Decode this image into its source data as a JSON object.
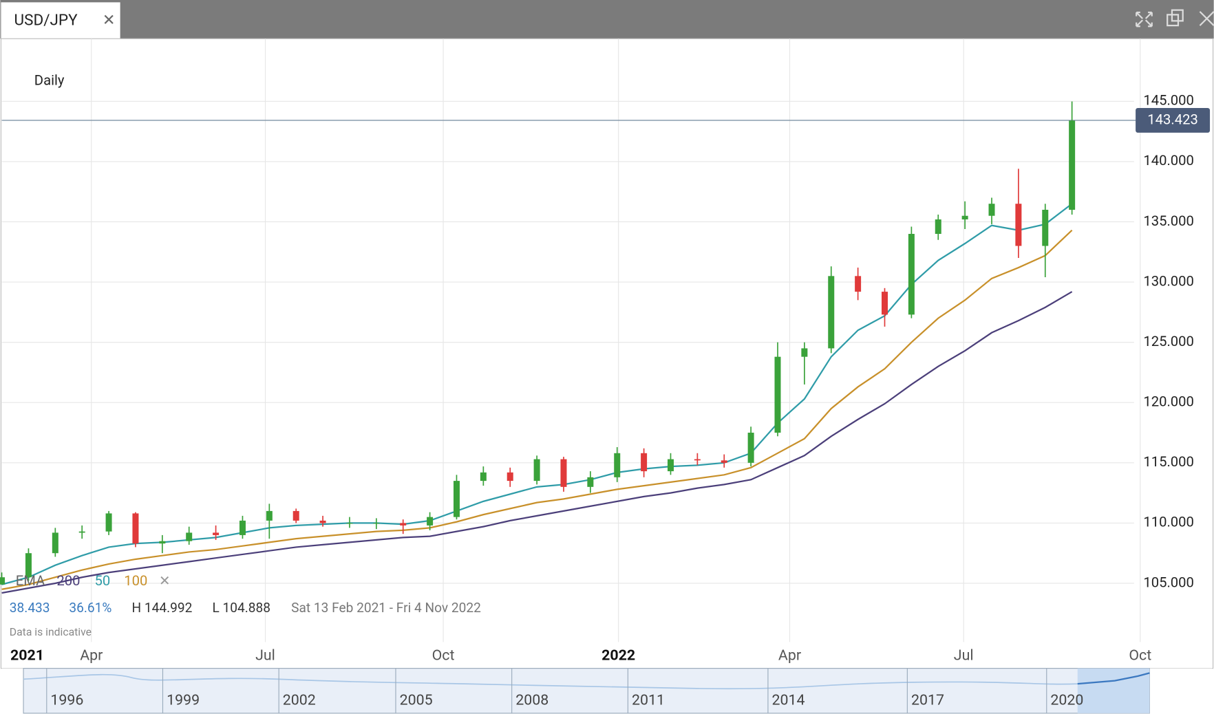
{
  "tab": {
    "title": "USD/JPY"
  },
  "chart_data": {
    "type": "candlestick",
    "title": "Daily",
    "open": [
      104.9,
      105.5,
      107.5,
      109.2,
      109.3,
      110.8,
      108.3,
      108.5,
      109.2,
      109.0,
      110.2,
      111.0,
      110.2,
      110.0,
      110.0,
      110.0,
      109.8,
      110.5,
      113.5,
      114.2,
      113.5,
      115.3,
      113.0,
      113.8,
      115.8,
      114.3,
      115.3,
      115.2,
      115.0,
      117.5,
      123.8,
      124.5,
      130.5,
      129.2,
      127.3,
      134.0,
      135.2,
      135.5,
      136.5,
      133.0,
      136.0
    ],
    "high": [
      105.9,
      107.9,
      109.6,
      109.8,
      111.0,
      110.9,
      109.0,
      109.7,
      109.8,
      110.6,
      111.6,
      111.2,
      110.6,
      110.5,
      110.4,
      110.3,
      110.9,
      114.0,
      114.7,
      114.6,
      115.6,
      115.5,
      114.3,
      116.3,
      116.2,
      115.8,
      115.8,
      115.7,
      118.0,
      125.0,
      125.0,
      131.3,
      131.2,
      129.5,
      134.6,
      135.6,
      136.7,
      137.0,
      139.4,
      136.5,
      144.99
    ],
    "low": [
      104.89,
      105.2,
      107.2,
      108.7,
      109.0,
      108.0,
      107.5,
      108.2,
      108.6,
      108.7,
      108.7,
      110.0,
      109.7,
      109.6,
      109.5,
      109.1,
      109.4,
      110.3,
      113.1,
      113.0,
      113.2,
      112.6,
      112.5,
      113.4,
      113.8,
      114.0,
      114.8,
      114.6,
      114.7,
      117.2,
      121.5,
      124.1,
      128.5,
      126.3,
      127.0,
      133.5,
      134.4,
      134.8,
      132.0,
      130.4,
      135.6
    ],
    "close": [
      105.5,
      107.5,
      109.2,
      109.3,
      110.8,
      108.3,
      108.5,
      109.2,
      109.0,
      110.2,
      111.0,
      110.2,
      110.0,
      110.0,
      110.0,
      109.8,
      110.5,
      113.5,
      114.2,
      113.5,
      115.3,
      113.0,
      113.8,
      115.8,
      114.3,
      115.3,
      115.2,
      115.0,
      117.5,
      123.8,
      124.5,
      130.5,
      129.2,
      127.3,
      134.0,
      135.2,
      135.5,
      136.5,
      133.0,
      136.0,
      143.4
    ],
    "up_color": "#3aa23a",
    "down_color": "#e03a3a",
    "legend_title": "EMA",
    "series": [
      {
        "name": "200",
        "color": "#4b3f7a",
        "values": [
          104.2,
          104.6,
          105.0,
          105.5,
          105.9,
          106.2,
          106.5,
          106.8,
          107.1,
          107.4,
          107.7,
          108.0,
          108.2,
          108.4,
          108.6,
          108.8,
          108.9,
          109.3,
          109.7,
          110.2,
          110.6,
          111.0,
          111.4,
          111.8,
          112.2,
          112.5,
          112.9,
          113.2,
          113.6,
          114.6,
          115.6,
          117.2,
          118.6,
          119.9,
          121.5,
          123.0,
          124.3,
          125.8,
          126.8,
          127.9,
          129.2
        ]
      },
      {
        "name": "50",
        "color": "#2f9ca8",
        "values": [
          104.9,
          105.5,
          106.5,
          107.3,
          108.0,
          108.3,
          108.4,
          108.6,
          108.8,
          109.2,
          109.6,
          109.8,
          109.9,
          110.0,
          110.0,
          109.9,
          110.2,
          111.0,
          111.8,
          112.4,
          113.0,
          113.2,
          113.6,
          114.2,
          114.5,
          114.7,
          114.8,
          115.0,
          115.8,
          118.3,
          120.3,
          123.8,
          126.0,
          127.2,
          129.8,
          131.8,
          133.2,
          134.7,
          134.3,
          134.8,
          136.5
        ]
      },
      {
        "name": "100",
        "color": "#c8902a",
        "values": [
          104.5,
          104.9,
          105.5,
          106.1,
          106.6,
          107.0,
          107.3,
          107.6,
          107.8,
          108.1,
          108.4,
          108.7,
          108.9,
          109.1,
          109.3,
          109.4,
          109.6,
          110.1,
          110.7,
          111.2,
          111.7,
          112.0,
          112.4,
          112.8,
          113.1,
          113.4,
          113.7,
          114.0,
          114.6,
          115.8,
          117.0,
          119.5,
          121.3,
          122.8,
          125.0,
          127.0,
          128.5,
          130.3,
          131.2,
          132.2,
          134.3
        ]
      }
    ],
    "current_price": 143.423,
    "xlim": [
      0,
      45.3
    ],
    "xticks": [
      {
        "value": 0.95,
        "label": "2021"
      },
      {
        "value": 3.35,
        "label": "Apr"
      },
      {
        "value": 9.85,
        "label": "Jul"
      },
      {
        "value": 16.5,
        "label": "Oct"
      },
      {
        "value": 23.05,
        "label": "2022"
      },
      {
        "value": 29.45,
        "label": "Apr"
      },
      {
        "value": 35.95,
        "label": "Jul"
      },
      {
        "value": 42.55,
        "label": "Oct"
      }
    ],
    "ylim": [
      97.94,
      150.2
    ],
    "yticks": [
      {
        "value": 105,
        "label": "105.000"
      },
      {
        "value": 110,
        "label": "110.000"
      },
      {
        "value": 115,
        "label": "115.000"
      },
      {
        "value": 120,
        "label": "120.000"
      },
      {
        "value": 125,
        "label": "125.000"
      },
      {
        "value": 130,
        "label": "130.000"
      },
      {
        "value": 135,
        "label": "135.000"
      },
      {
        "value": 140,
        "label": "140.000"
      },
      {
        "value": 145,
        "label": "145.000"
      }
    ],
    "grid": true,
    "stats": {
      "change": "38.433",
      "change_pct": "36.61%",
      "high": "H 144.992",
      "low": "L 104.888",
      "range": "Sat 13 Feb 2021 - Fri 4 Nov 2022"
    },
    "note": "Data is indicative"
  },
  "navigator": {
    "labels": [
      "1996",
      "1999",
      "2002",
      "2005",
      "2008",
      "2011",
      "2014",
      "2017",
      "2020"
    ]
  }
}
